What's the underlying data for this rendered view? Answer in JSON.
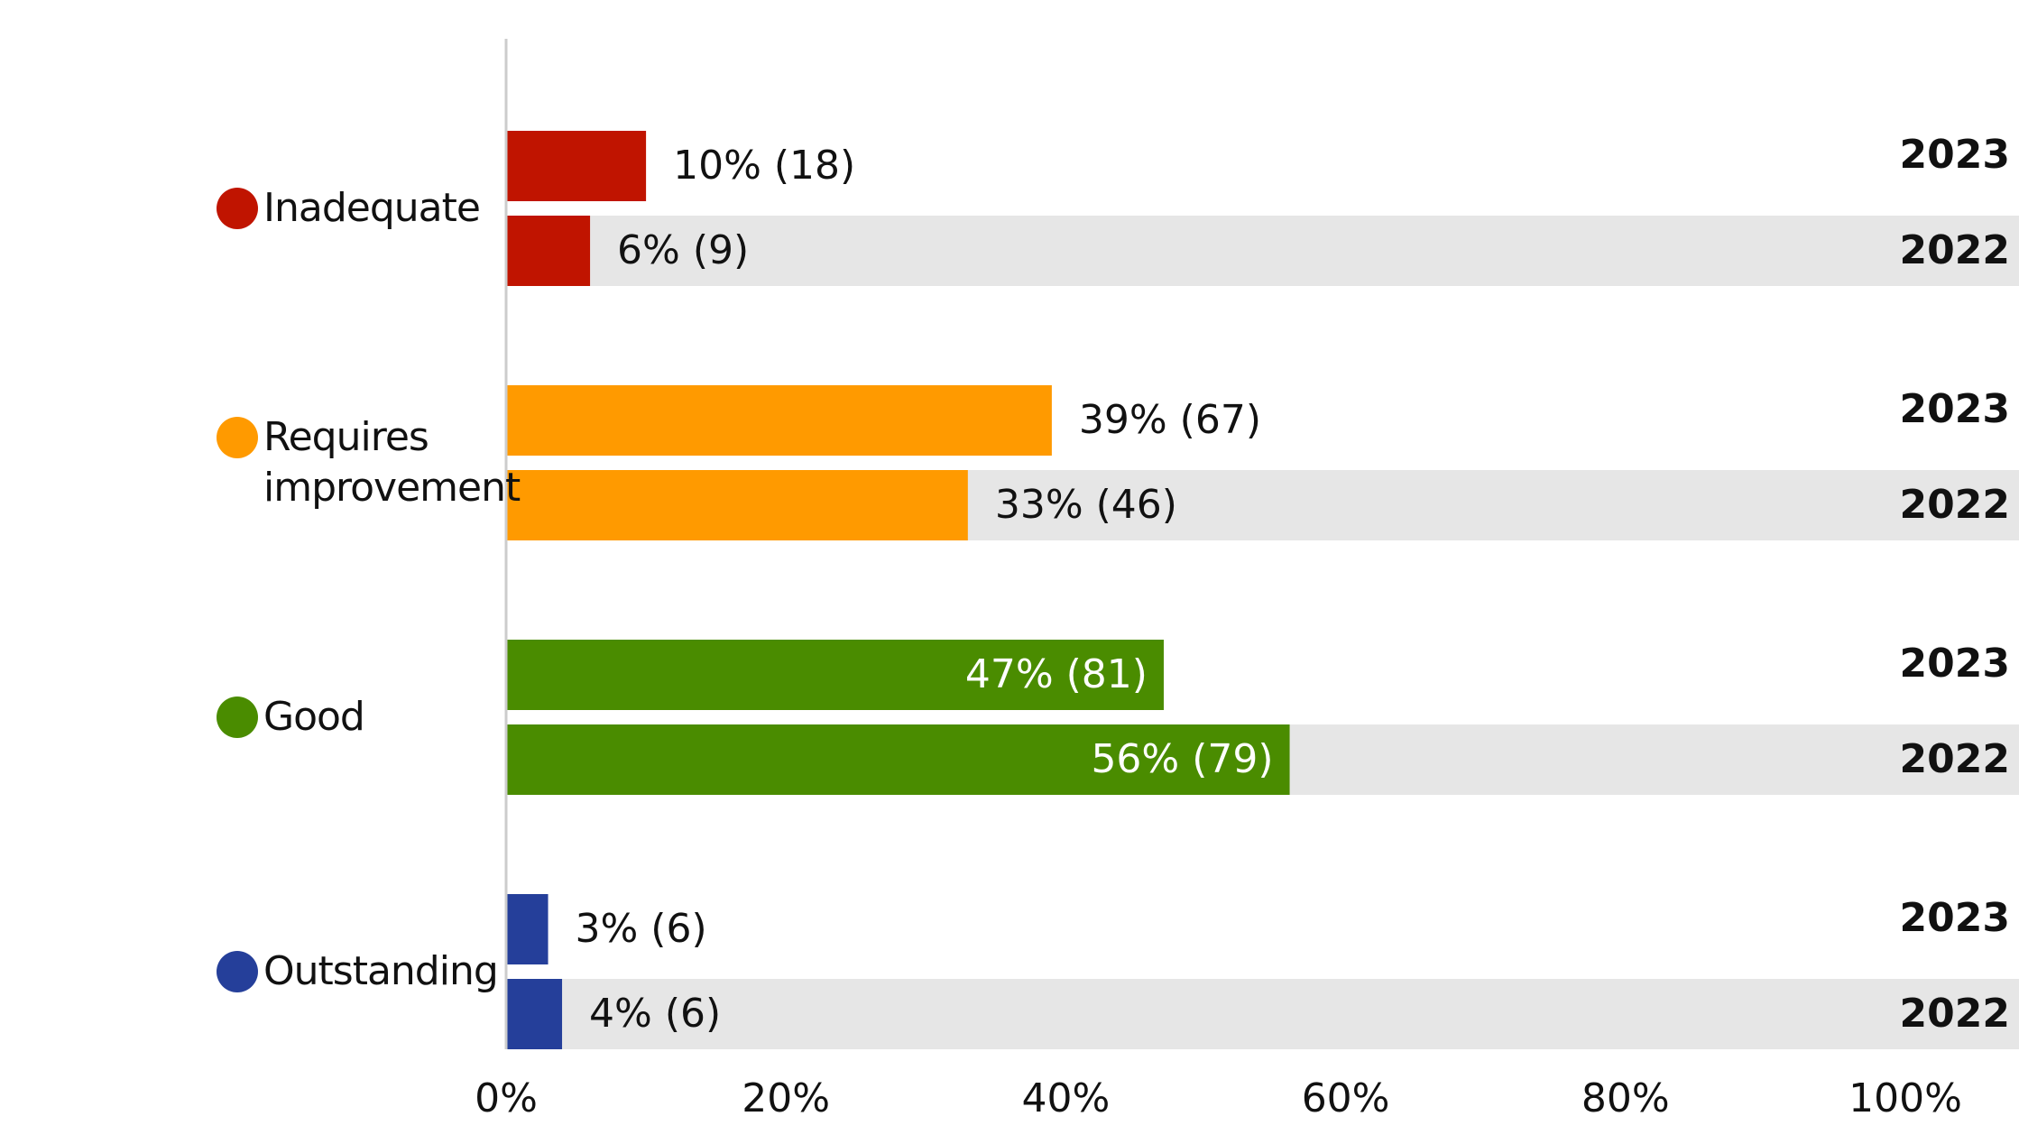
{
  "chart_data": {
    "type": "hbar",
    "categories": [
      "Inadequate",
      "Requires improvement",
      "Good",
      "Outstanding"
    ],
    "category_colors": [
      "#c01400",
      "#ff9a00",
      "#4a8c00",
      "#253f9a"
    ],
    "series": [
      {
        "name": "2023",
        "values": [
          10,
          39,
          47,
          3
        ],
        "value_labels": [
          "10% (18)",
          "39% (67)",
          "47% (81)",
          "3% (6)"
        ]
      },
      {
        "name": "2022",
        "values": [
          6,
          33,
          56,
          4
        ],
        "value_labels": [
          "6% (9)",
          "33% (46)",
          "56% (79)",
          "4% (6)"
        ]
      }
    ],
    "xlim": [
      0,
      100
    ],
    "xticks": [
      {
        "value": 0,
        "label": "0%"
      },
      {
        "value": 20,
        "label": "20%"
      },
      {
        "value": 40,
        "label": "40%"
      },
      {
        "value": 60,
        "label": "60%"
      },
      {
        "value": 80,
        "label": "80%"
      },
      {
        "value": 100,
        "label": "100%"
      }
    ],
    "band_color": "#e6e6e6"
  }
}
